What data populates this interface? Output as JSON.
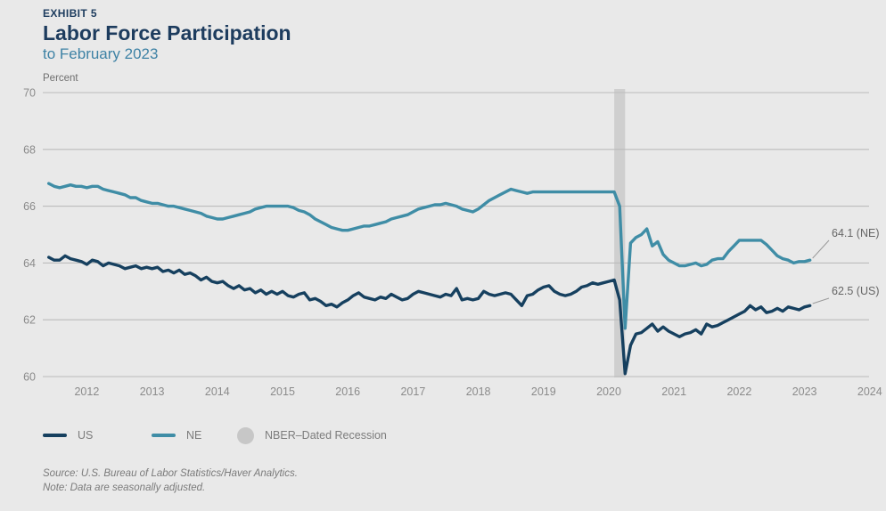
{
  "header": {
    "exhibit": "EXHIBIT 5",
    "title": "Labor Force Participation",
    "subtitle": "to February 2023"
  },
  "chart_data": {
    "type": "line",
    "unit_label": "Percent",
    "ylim": [
      60,
      70
    ],
    "yticks": [
      70,
      68,
      66,
      64,
      62,
      60
    ],
    "xticks": [
      2012,
      2013,
      2014,
      2015,
      2016,
      2017,
      2018,
      2019,
      2020,
      2021,
      2022,
      2023,
      2024
    ],
    "x_start_month": "2011-06",
    "x_end_month": "2023-02",
    "grid": "horizontal-only",
    "recession_band": {
      "label": "NBER–Dated Recession",
      "start": "2020-02",
      "end": "2020-04",
      "color": "#cfcfcf"
    },
    "series": [
      {
        "name": "NE",
        "color": "#3f8da6",
        "end_label": "64.1 (NE)",
        "end_value": 64.1,
        "values": [
          66.8,
          66.7,
          66.65,
          66.7,
          66.75,
          66.7,
          66.7,
          66.65,
          66.7,
          66.7,
          66.6,
          66.55,
          66.5,
          66.45,
          66.4,
          66.3,
          66.3,
          66.2,
          66.15,
          66.1,
          66.1,
          66.05,
          66.0,
          66.0,
          65.95,
          65.9,
          65.85,
          65.8,
          65.75,
          65.65,
          65.6,
          65.55,
          65.55,
          65.6,
          65.65,
          65.7,
          65.75,
          65.8,
          65.9,
          65.95,
          66.0,
          66.0,
          66.0,
          66.0,
          66.0,
          65.95,
          65.85,
          65.8,
          65.7,
          65.55,
          65.45,
          65.35,
          65.25,
          65.2,
          65.15,
          65.15,
          65.2,
          65.25,
          65.3,
          65.3,
          65.35,
          65.4,
          65.45,
          65.55,
          65.6,
          65.65,
          65.7,
          65.8,
          65.9,
          65.95,
          66.0,
          66.05,
          66.05,
          66.1,
          66.05,
          66.0,
          65.9,
          65.85,
          65.8,
          65.9,
          66.05,
          66.2,
          66.3,
          66.4,
          66.5,
          66.6,
          66.55,
          66.5,
          66.45,
          66.5,
          66.5,
          66.5,
          66.5,
          66.5,
          66.5,
          66.5,
          66.5,
          66.5,
          66.5,
          66.5,
          66.5,
          66.5,
          66.5,
          66.5,
          66.5,
          66.0,
          61.7,
          64.7,
          64.9,
          65.0,
          65.2,
          64.6,
          64.75,
          64.3,
          64.1,
          64.0,
          63.9,
          63.9,
          63.95,
          64.0,
          63.9,
          63.95,
          64.1,
          64.15,
          64.15,
          64.4,
          64.6,
          64.8,
          64.8,
          64.8,
          64.8,
          64.8,
          64.65,
          64.45,
          64.25,
          64.15,
          64.1,
          64.0,
          64.05,
          64.05,
          64.1
        ]
      },
      {
        "name": "US",
        "color": "#16405f",
        "end_label": "62.5 (US)",
        "end_value": 62.5,
        "values": [
          64.2,
          64.1,
          64.1,
          64.25,
          64.15,
          64.1,
          64.05,
          63.95,
          64.1,
          64.05,
          63.9,
          64.0,
          63.95,
          63.9,
          63.8,
          63.85,
          63.9,
          63.8,
          63.85,
          63.8,
          63.85,
          63.7,
          63.75,
          63.65,
          63.75,
          63.6,
          63.65,
          63.55,
          63.4,
          63.5,
          63.35,
          63.3,
          63.35,
          63.2,
          63.1,
          63.2,
          63.05,
          63.1,
          62.95,
          63.05,
          62.9,
          63.0,
          62.9,
          63.0,
          62.85,
          62.8,
          62.9,
          62.95,
          62.7,
          62.75,
          62.65,
          62.5,
          62.55,
          62.45,
          62.6,
          62.7,
          62.85,
          62.95,
          62.8,
          62.75,
          62.7,
          62.8,
          62.75,
          62.9,
          62.8,
          62.7,
          62.75,
          62.9,
          63.0,
          62.95,
          62.9,
          62.85,
          62.8,
          62.9,
          62.85,
          63.1,
          62.7,
          62.75,
          62.7,
          62.75,
          63.0,
          62.9,
          62.85,
          62.9,
          62.95,
          62.9,
          62.7,
          62.5,
          62.85,
          62.9,
          63.05,
          63.15,
          63.2,
          63.0,
          62.9,
          62.85,
          62.9,
          63.0,
          63.15,
          63.2,
          63.3,
          63.25,
          63.3,
          63.35,
          63.4,
          62.7,
          60.1,
          61.1,
          61.5,
          61.55,
          61.7,
          61.85,
          61.6,
          61.75,
          61.6,
          61.5,
          61.4,
          61.5,
          61.55,
          61.65,
          61.5,
          61.85,
          61.75,
          61.8,
          61.9,
          62.0,
          62.1,
          62.2,
          62.3,
          62.5,
          62.35,
          62.45,
          62.25,
          62.3,
          62.4,
          62.3,
          62.45,
          62.4,
          62.35,
          62.45,
          62.5
        ]
      }
    ]
  },
  "legend": {
    "items": [
      {
        "label": "US",
        "type": "line",
        "color": "#16405f"
      },
      {
        "label": "NE",
        "type": "line",
        "color": "#3f8da6"
      },
      {
        "label": "NBER–Dated Recession",
        "type": "dot",
        "color": "#c7c7c7"
      }
    ]
  },
  "footer": {
    "source": "Source: U.S. Bureau of Labor Statistics/Haver Analytics.",
    "note": "Note: Data are seasonally adjusted."
  }
}
